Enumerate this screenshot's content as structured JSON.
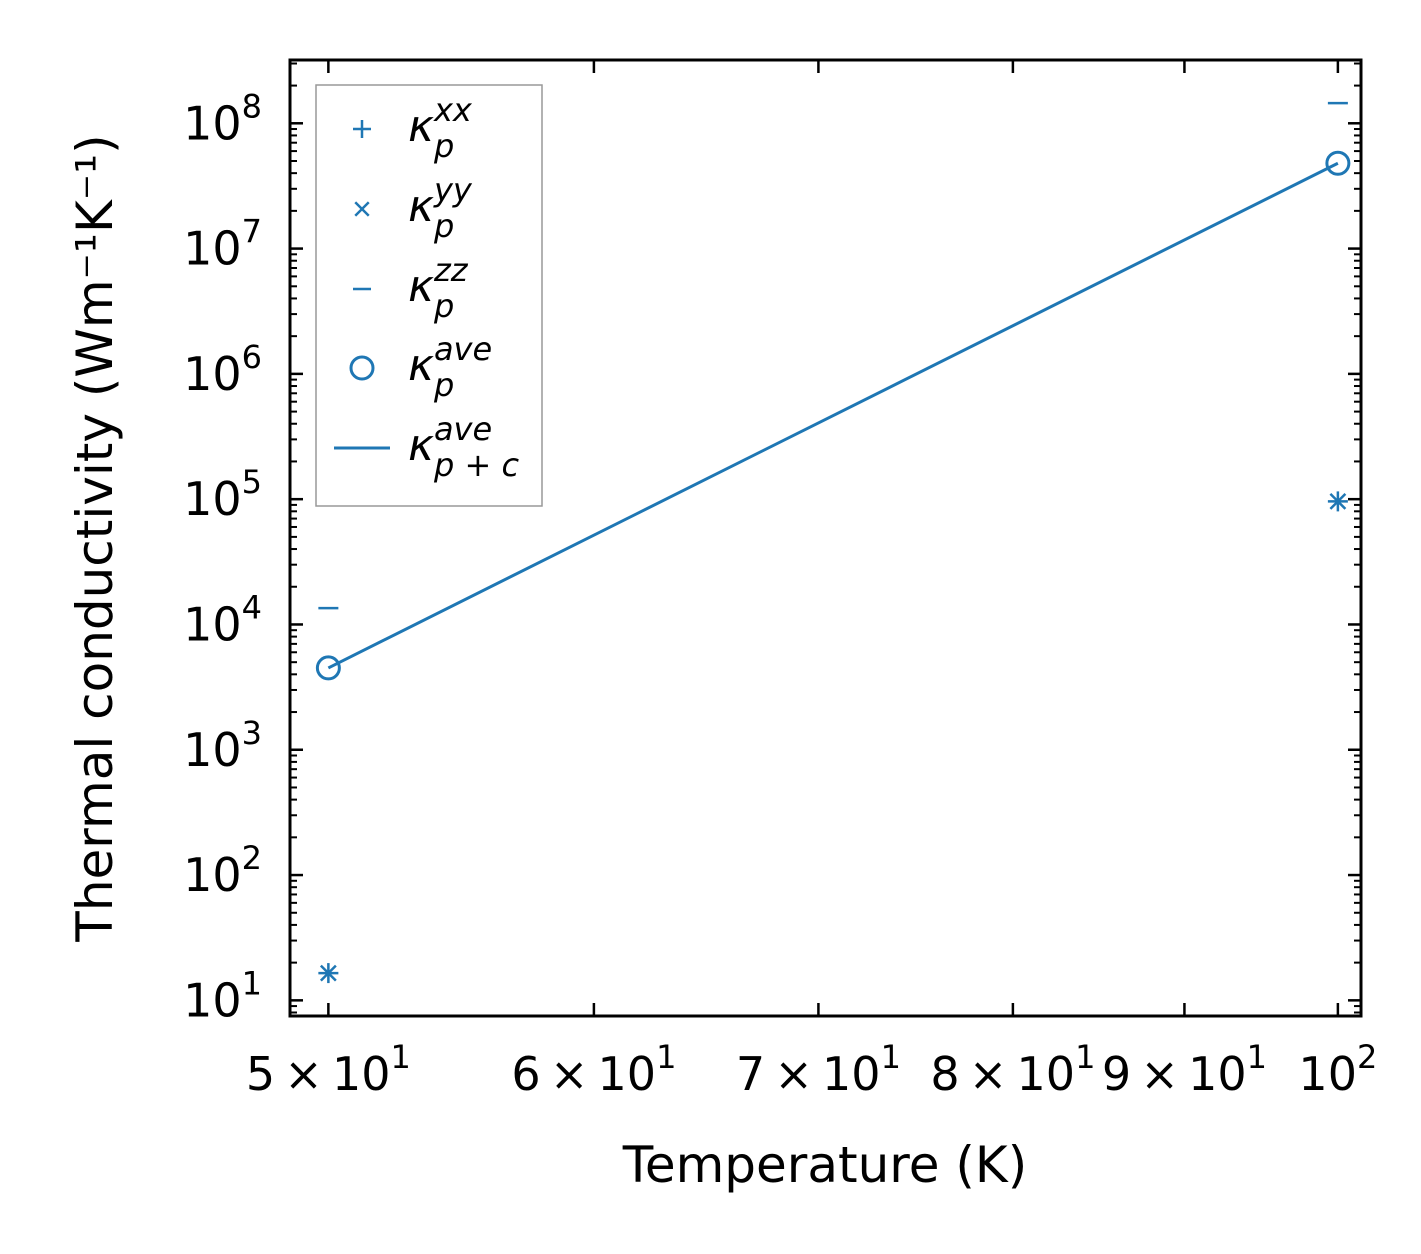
{
  "chart_data": {
    "type": "scatter",
    "xscale": "log",
    "yscale": "log",
    "xlabel": "Temperature (K)",
    "ylabel": "Thermal conductivity (Wm⁻¹K⁻¹)",
    "xlim": [
      48.7,
      101.6
    ],
    "ylim": [
      7.5,
      320000000
    ],
    "x_ticks": [
      {
        "value": 50,
        "mant": "5",
        "exp": "1"
      },
      {
        "value": 60,
        "mant": "6",
        "exp": "1"
      },
      {
        "value": 70,
        "mant": "7",
        "exp": "1"
      },
      {
        "value": 80,
        "mant": "8",
        "exp": "1"
      },
      {
        "value": 90,
        "mant": "9",
        "exp": "1"
      },
      {
        "value": 100,
        "mant": "",
        "exp": "2"
      }
    ],
    "y_ticks": [
      {
        "value": 10,
        "exp": "1"
      },
      {
        "value": 100,
        "exp": "2"
      },
      {
        "value": 1000,
        "exp": "3"
      },
      {
        "value": 10000,
        "exp": "4"
      },
      {
        "value": 100000,
        "exp": "5"
      },
      {
        "value": 1000000,
        "exp": "6"
      },
      {
        "value": 10000000,
        "exp": "7"
      },
      {
        "value": 100000000,
        "exp": "8"
      }
    ],
    "tick_base": "10",
    "times_sign": "×",
    "color": "#1f77b4",
    "series": [
      {
        "name": "κ",
        "sup": "xx",
        "sub": "p",
        "marker": "plus",
        "x": [
          50,
          100
        ],
        "y": [
          16.5,
          96000
        ]
      },
      {
        "name": "κ",
        "sup": "yy",
        "sub": "p",
        "marker": "x",
        "x": [
          50,
          100
        ],
        "y": [
          16.5,
          96000
        ]
      },
      {
        "name": "κ",
        "sup": "zz",
        "sub": "p",
        "marker": "hline",
        "x": [
          50,
          100
        ],
        "y": [
          13500,
          145000000
        ]
      },
      {
        "name": "κ",
        "sup": "ave",
        "sub": "p",
        "marker": "circle",
        "x": [
          50,
          100
        ],
        "y": [
          4500,
          48000000
        ]
      },
      {
        "name": "κ",
        "sup": "ave",
        "sub": "p + c",
        "marker": "line",
        "x": [
          50,
          100
        ],
        "y": [
          4500,
          48000000
        ]
      }
    ],
    "legend": "top-left"
  }
}
